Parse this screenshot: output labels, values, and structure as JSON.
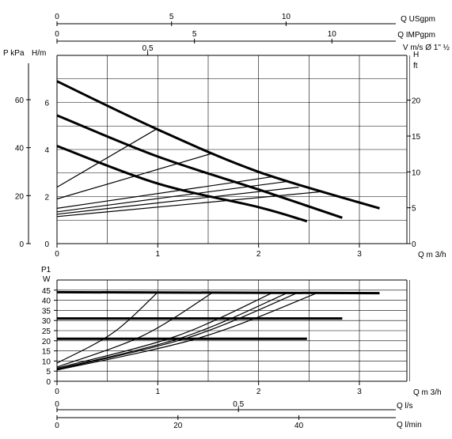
{
  "chart_data": [
    {
      "type": "line",
      "x_unit": "Q m³/h",
      "xlim": [
        0,
        3.5
      ],
      "ylim_m": [
        0,
        8
      ],
      "xticks": [
        "0",
        "1",
        "2",
        "3"
      ],
      "xlabel": "Q m 3/h",
      "y_left_m_label": "H/m",
      "y_left_m_ticks": [
        "0",
        "2",
        "4",
        "6"
      ],
      "y_left_kpa_label": "P kPa",
      "y_left_kpa_ticks": [
        "0",
        "20",
        "40",
        "60"
      ],
      "y_right_ft_label_h": "H",
      "y_right_ft_label_ft": "ft",
      "y_right_ft_ticks": [
        "0",
        "5",
        "10",
        "15",
        "20"
      ],
      "top_axes": [
        {
          "label": "Q USgpm",
          "ticks": [
            "0",
            "5",
            "10"
          ]
        },
        {
          "label": "Q IMPgpm",
          "ticks": [
            "0",
            "5",
            "10"
          ]
        },
        {
          "label": "V m/s Ø 1\"  ½",
          "ticks": [
            "0,5"
          ]
        }
      ],
      "series": [
        {
          "values": [
            [
              0,
              6.9
            ],
            [
              1,
              4.85
            ],
            [
              2,
              3.05
            ],
            [
              3.2,
              1.5
            ]
          ]
        },
        {
          "values": [
            [
              0,
              5.45
            ],
            [
              1,
              3.7
            ],
            [
              2,
              2.3
            ],
            [
              2.83,
              1.1
            ]
          ]
        },
        {
          "values": [
            [
              0,
              4.15
            ],
            [
              1,
              2.55
            ],
            [
              2,
              1.55
            ],
            [
              2.48,
              0.95
            ]
          ]
        }
      ],
      "system_curves": [
        {
          "values": [
            [
              0,
              2.4
            ],
            [
              1,
              4.9
            ]
          ]
        },
        {
          "values": [
            [
              0,
              1.9
            ],
            [
              1.55,
              3.85
            ]
          ]
        },
        {
          "values": [
            [
              0,
              1.5
            ],
            [
              2.15,
              2.85
            ]
          ]
        },
        {
          "values": [
            [
              0,
              1.35
            ],
            [
              2.3,
              2.65
            ]
          ]
        },
        {
          "values": [
            [
              0,
              1.25
            ],
            [
              2.4,
              2.4
            ]
          ]
        },
        {
          "values": [
            [
              0,
              1.15
            ],
            [
              2.6,
              2.2
            ]
          ]
        }
      ]
    },
    {
      "type": "line",
      "xlim": [
        0,
        3.5
      ],
      "ylim": [
        0,
        50
      ],
      "ylabel_p1": "P1",
      "ylabel_w": "W",
      "yticks": [
        "0",
        "5",
        "10",
        "15",
        "20",
        "25",
        "30",
        "35",
        "40",
        "45"
      ],
      "xticks": [
        "0",
        "1",
        "2",
        "3"
      ],
      "xlabel": "Q m 3/h",
      "bottom_axes": [
        {
          "label": "Q  l/s",
          "ticks": [
            "0",
            "0,5"
          ]
        },
        {
          "label": "Q  l/min",
          "ticks": [
            "0",
            "20",
            "40"
          ]
        }
      ],
      "series": [
        {
          "values": [
            [
              0,
              44
            ],
            [
              3.2,
              43.5
            ]
          ]
        },
        {
          "values": [
            [
              0,
              31
            ],
            [
              2.83,
              31
            ]
          ]
        },
        {
          "values": [
            [
              0,
              21
            ],
            [
              2.48,
              21
            ]
          ]
        }
      ],
      "speed_curves": [
        {
          "values": [
            [
              0,
              9
            ],
            [
              1,
              44
            ]
          ]
        },
        {
          "values": [
            [
              0,
              7
            ],
            [
              1.55,
              44
            ]
          ]
        },
        {
          "values": [
            [
              0,
              6.5
            ],
            [
              2.15,
              44
            ]
          ]
        },
        {
          "values": [
            [
              0,
              6
            ],
            [
              2.3,
              44
            ]
          ]
        },
        {
          "values": [
            [
              0,
              5.8
            ],
            [
              2.4,
              44
            ]
          ]
        },
        {
          "values": [
            [
              0,
              5.5
            ],
            [
              2.6,
              44
            ]
          ]
        }
      ]
    }
  ]
}
